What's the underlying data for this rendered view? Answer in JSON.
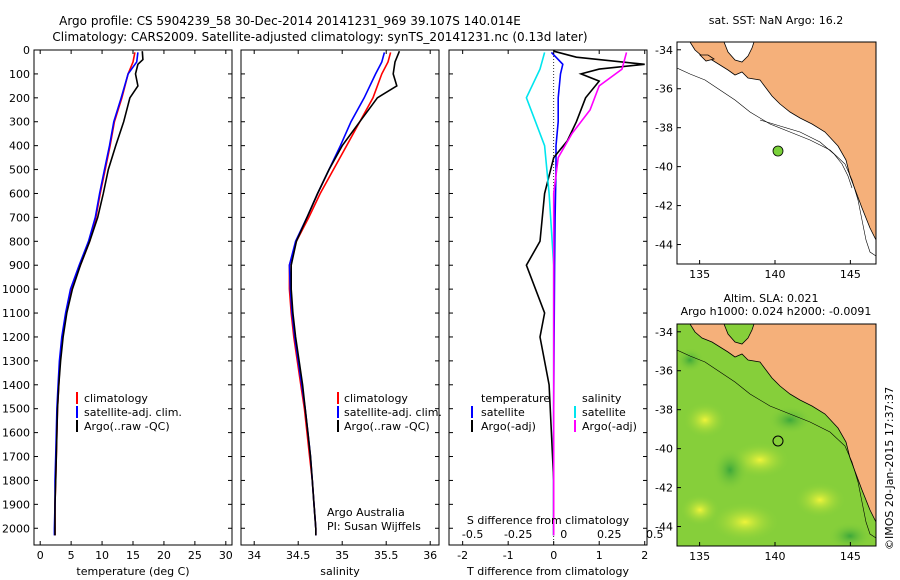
{
  "header": {
    "line1": "Argo profile: CS 5904239_58 30-Dec-2014 20141231_969 39.107S 140.014E",
    "line2": "Climatology: CARS2009. Satellite-adjusted climatology: synTS_20141231.nc (0.13d later)"
  },
  "side_label": "©IMOS 20-Jan-2015 17:37:37",
  "colors": {
    "climatology": "#ff0000",
    "satellite": "#0000ff",
    "argo": "#000000",
    "sal_satellite": "#00e5ee",
    "sal_argo": "#ff00ff",
    "land": "#f5b07a",
    "float_marker": "#7ad13a"
  },
  "chart_data": [
    {
      "type": "line",
      "id": "temperature",
      "xlabel": "temperature (deg C)",
      "xlim": [
        -1,
        31
      ],
      "xticks": [
        "0",
        "5",
        "10",
        "15",
        "20",
        "25",
        "30"
      ],
      "xtick_values": [
        0,
        5,
        10,
        15,
        20,
        25,
        30
      ],
      "ylim": [
        0,
        2070
      ],
      "yticks": [
        "0",
        "100",
        "200",
        "300",
        "400",
        "500",
        "600",
        "700",
        "800",
        "900",
        "1000",
        "1100",
        "1200",
        "1300",
        "1400",
        "1500",
        "1600",
        "1700",
        "1800",
        "1900",
        "2000"
      ],
      "ytick_values": [
        0,
        100,
        200,
        300,
        400,
        500,
        600,
        700,
        800,
        900,
        1000,
        1100,
        1200,
        1300,
        1400,
        1500,
        1600,
        1700,
        1800,
        1900,
        2000
      ],
      "legend": [
        "climatology",
        "satellite-adj. clim.",
        "Argo(..raw -QC)"
      ],
      "series": [
        {
          "color_key": "climatology",
          "points": [
            [
              15.3,
              10
            ],
            [
              15,
              50
            ],
            [
              14.2,
              100
            ],
            [
              13.2,
              200
            ],
            [
              12,
              300
            ],
            [
              11.3,
              400
            ],
            [
              10.5,
              500
            ],
            [
              9.7,
              600
            ],
            [
              9,
              700
            ],
            [
              8,
              800
            ],
            [
              6.5,
              900
            ],
            [
              5,
              1000
            ],
            [
              4.2,
              1100
            ],
            [
              3.6,
              1200
            ],
            [
              3.2,
              1300
            ],
            [
              3,
              1400
            ],
            [
              2.8,
              1500
            ],
            [
              2.7,
              1600
            ],
            [
              2.6,
              1700
            ],
            [
              2.5,
              1800
            ],
            [
              2.4,
              1900
            ],
            [
              2.4,
              2000
            ],
            [
              2.4,
              2030
            ]
          ]
        },
        {
          "color_key": "satellite",
          "points": [
            [
              15.8,
              10
            ],
            [
              15.6,
              50
            ],
            [
              14.2,
              100
            ],
            [
              13.1,
              200
            ],
            [
              11.9,
              300
            ],
            [
              11.2,
              400
            ],
            [
              10.4,
              500
            ],
            [
              9.6,
              600
            ],
            [
              8.9,
              700
            ],
            [
              7.8,
              800
            ],
            [
              6.3,
              900
            ],
            [
              4.9,
              1000
            ],
            [
              4.1,
              1100
            ],
            [
              3.5,
              1200
            ],
            [
              3.1,
              1300
            ],
            [
              2.9,
              1400
            ],
            [
              2.7,
              1500
            ],
            [
              2.6,
              1600
            ],
            [
              2.5,
              1700
            ],
            [
              2.4,
              1800
            ],
            [
              2.4,
              1900
            ],
            [
              2.3,
              2000
            ],
            [
              2.3,
              2030
            ]
          ]
        },
        {
          "color_key": "argo",
          "points": [
            [
              16.5,
              5
            ],
            [
              16.6,
              40
            ],
            [
              15.8,
              60
            ],
            [
              15.4,
              100
            ],
            [
              15.8,
              150
            ],
            [
              14.5,
              200
            ],
            [
              13.5,
              300
            ],
            [
              12.2,
              400
            ],
            [
              11,
              500
            ],
            [
              10.2,
              600
            ],
            [
              9.3,
              700
            ],
            [
              8,
              800
            ],
            [
              6.5,
              900
            ],
            [
              5.2,
              1000
            ],
            [
              4.3,
              1100
            ],
            [
              3.7,
              1200
            ],
            [
              3.3,
              1300
            ],
            [
              3,
              1400
            ],
            [
              2.8,
              1500
            ],
            [
              2.7,
              1600
            ],
            [
              2.6,
              1700
            ],
            [
              2.5,
              1800
            ],
            [
              2.4,
              1900
            ],
            [
              2.4,
              2000
            ],
            [
              2.4,
              2030
            ]
          ]
        }
      ]
    },
    {
      "type": "line",
      "id": "salinity",
      "xlabel": "salinity",
      "xlim": [
        33.85,
        36.1
      ],
      "xticks": [
        "34",
        "34.5",
        "35",
        "35.5",
        "36"
      ],
      "xtick_values": [
        34,
        34.5,
        35,
        35.5,
        36
      ],
      "ylim": [
        0,
        2070
      ],
      "legend": [
        "climatology",
        "satellite-adj. clim.",
        "Argo(..raw -QC)"
      ],
      "annotation": [
        "Argo Australia",
        "PI: Susan Wijffels"
      ],
      "series": [
        {
          "color_key": "climatology",
          "points": [
            [
              35.55,
              10
            ],
            [
              35.52,
              50
            ],
            [
              35.45,
              100
            ],
            [
              35.35,
              200
            ],
            [
              35.2,
              300
            ],
            [
              35.05,
              400
            ],
            [
              34.9,
              500
            ],
            [
              34.75,
              600
            ],
            [
              34.62,
              700
            ],
            [
              34.48,
              800
            ],
            [
              34.4,
              900
            ],
            [
              34.4,
              1000
            ],
            [
              34.42,
              1100
            ],
            [
              34.45,
              1200
            ],
            [
              34.49,
              1300
            ],
            [
              34.53,
              1400
            ],
            [
              34.57,
              1500
            ],
            [
              34.6,
              1600
            ],
            [
              34.63,
              1700
            ],
            [
              34.66,
              1800
            ],
            [
              34.68,
              1900
            ],
            [
              34.7,
              2000
            ],
            [
              34.7,
              2030
            ]
          ]
        },
        {
          "color_key": "satellite",
          "points": [
            [
              35.48,
              10
            ],
            [
              35.45,
              50
            ],
            [
              35.38,
              100
            ],
            [
              35.25,
              200
            ],
            [
              35.1,
              300
            ],
            [
              34.98,
              400
            ],
            [
              34.85,
              500
            ],
            [
              34.72,
              600
            ],
            [
              34.6,
              700
            ],
            [
              34.47,
              800
            ],
            [
              34.4,
              900
            ],
            [
              34.41,
              1000
            ],
            [
              34.43,
              1100
            ],
            [
              34.46,
              1200
            ],
            [
              34.5,
              1300
            ],
            [
              34.54,
              1400
            ],
            [
              34.58,
              1500
            ],
            [
              34.61,
              1600
            ],
            [
              34.64,
              1700
            ],
            [
              34.66,
              1800
            ],
            [
              34.68,
              1900
            ],
            [
              34.7,
              2000
            ],
            [
              34.7,
              2030
            ]
          ]
        },
        {
          "color_key": "argo",
          "points": [
            [
              35.65,
              5
            ],
            [
              35.6,
              50
            ],
            [
              35.58,
              100
            ],
            [
              35.62,
              150
            ],
            [
              35.4,
              200
            ],
            [
              35.2,
              300
            ],
            [
              35.0,
              400
            ],
            [
              34.85,
              500
            ],
            [
              34.72,
              600
            ],
            [
              34.6,
              700
            ],
            [
              34.48,
              800
            ],
            [
              34.42,
              900
            ],
            [
              34.42,
              1000
            ],
            [
              34.44,
              1100
            ],
            [
              34.47,
              1200
            ],
            [
              34.51,
              1300
            ],
            [
              34.55,
              1400
            ],
            [
              34.58,
              1500
            ],
            [
              34.61,
              1600
            ],
            [
              34.64,
              1700
            ],
            [
              34.66,
              1800
            ],
            [
              34.68,
              1900
            ],
            [
              34.7,
              2000
            ],
            [
              34.7,
              2030
            ]
          ]
        }
      ]
    },
    {
      "type": "line",
      "id": "difference",
      "xlabel": "T difference from climatology",
      "top_label": "S difference from climatology",
      "xlim": [
        -2.3,
        2.05
      ],
      "xticks": [
        "-2",
        "-1",
        "0",
        "1",
        "2"
      ],
      "xtick_values": [
        -2,
        -1,
        0,
        1,
        2
      ],
      "top_ticks": [
        "-0.5",
        "-0.25",
        "0",
        "0.25",
        "0.5"
      ],
      "top_tick_values": [
        -2,
        -1,
        0,
        1,
        2
      ],
      "ylim": [
        0,
        2070
      ],
      "legend_left_title": "temperature",
      "legend_left": [
        "satellite",
        "Argo(-adj)"
      ],
      "legend_right_title": "salinity",
      "legend_right": [
        "satellite",
        "Argo(-adj)"
      ],
      "series": [
        {
          "color_key": "satellite",
          "points": [
            [
              -0.05,
              10
            ],
            [
              0.05,
              30
            ],
            [
              0.2,
              60
            ],
            [
              0.15,
              100
            ],
            [
              0.1,
              200
            ],
            [
              0.1,
              300
            ],
            [
              0.05,
              400
            ],
            [
              0.05,
              500
            ],
            [
              0.03,
              700
            ],
            [
              0.02,
              900
            ],
            [
              0.01,
              1200
            ],
            [
              0,
              1500
            ],
            [
              0,
              2030
            ]
          ]
        },
        {
          "color_key": "argo",
          "points": [
            [
              0,
              5
            ],
            [
              0.5,
              30
            ],
            [
              2.0,
              60
            ],
            [
              1.0,
              80
            ],
            [
              0.6,
              100
            ],
            [
              1.0,
              130
            ],
            [
              0.7,
              200
            ],
            [
              0.5,
              300
            ],
            [
              0.3,
              380
            ],
            [
              0,
              450
            ],
            [
              -0.2,
              600
            ],
            [
              -0.3,
              800
            ],
            [
              -0.6,
              900
            ],
            [
              -0.2,
              1100
            ],
            [
              -0.3,
              1200
            ],
            [
              -0.1,
              1400
            ],
            [
              -0.05,
              1600
            ],
            [
              0,
              1800
            ],
            [
              0,
              2030
            ]
          ]
        },
        {
          "color_key": "sal_satellite",
          "points": [
            [
              -0.2,
              10
            ],
            [
              -0.3,
              80
            ],
            [
              -0.6,
              200
            ],
            [
              -0.4,
              300
            ],
            [
              -0.2,
              400
            ],
            [
              -0.1,
              600
            ],
            [
              0,
              900
            ],
            [
              0,
              1200
            ],
            [
              0,
              2030
            ]
          ]
        },
        {
          "color_key": "sal_argo",
          "points": [
            [
              1.6,
              10
            ],
            [
              1.5,
              80
            ],
            [
              1.0,
              150
            ],
            [
              0.8,
              250
            ],
            [
              0.4,
              350
            ],
            [
              0.1,
              450
            ],
            [
              0,
              600
            ],
            [
              0,
              900
            ],
            [
              0,
              2030
            ]
          ]
        }
      ]
    }
  ],
  "map_top": {
    "title": "sat. SST: NaN Argo: 16.2",
    "yticks": [
      "-34",
      "-36",
      "-38",
      "-40",
      "-42",
      "-44"
    ],
    "xticks": [
      "135",
      "140",
      "145"
    ]
  },
  "map_bottom": {
    "title1": "Altim. SLA: 0.021",
    "title2": "Argo h1000: 0.024 h2000: -0.0091",
    "yticks": [
      "-34",
      "-36",
      "-38",
      "-40",
      "-42",
      "-44"
    ],
    "xticks": [
      "135",
      "140",
      "145"
    ]
  }
}
